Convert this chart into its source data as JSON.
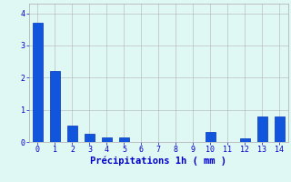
{
  "categories": [
    0,
    1,
    2,
    3,
    4,
    5,
    6,
    7,
    8,
    9,
    10,
    11,
    12,
    13,
    14
  ],
  "values": [
    3.7,
    2.2,
    0.5,
    0.25,
    0.15,
    0.15,
    0.0,
    0.0,
    0.0,
    0.0,
    0.32,
    0.0,
    0.12,
    0.8,
    0.8
  ],
  "bar_color": "#1155dd",
  "bar_edge_color": "#0033bb",
  "background_color": "#e0f8f4",
  "grid_color": "#aaaaaa",
  "xlabel": "Précipitations 1h ( mm )",
  "xlabel_color": "#0000cc",
  "tick_color": "#0000cc",
  "ylim": [
    0,
    4.3
  ],
  "yticks": [
    0,
    1,
    2,
    3,
    4
  ],
  "xticks": [
    0,
    1,
    2,
    3,
    4,
    5,
    6,
    7,
    8,
    9,
    10,
    11,
    12,
    13,
    14
  ],
  "bar_width": 0.6,
  "xlim_left": -0.5,
  "xlim_right": 14.5
}
